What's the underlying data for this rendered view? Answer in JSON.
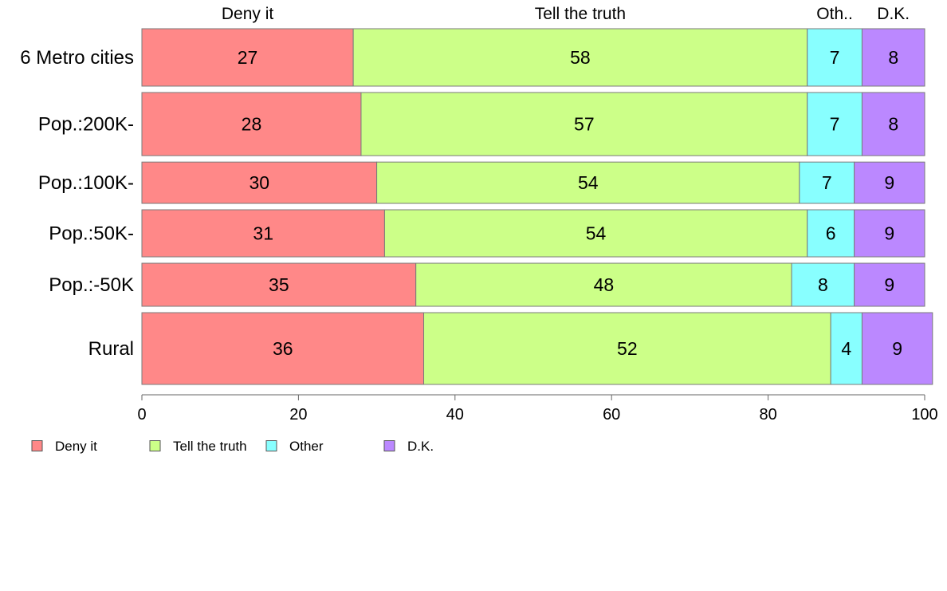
{
  "chart_data": {
    "type": "bar",
    "orientation": "horizontal",
    "stacked": true,
    "categories": [
      "6 Metro cities",
      "Pop.:200K-",
      "Pop.:100K-",
      "Pop.:50K-",
      "Pop.:-50K",
      "Rural"
    ],
    "series": [
      {
        "name": "Deny it",
        "short_label": "Deny it",
        "color": "#ff8888",
        "values": [
          27,
          28,
          30,
          31,
          35,
          36
        ]
      },
      {
        "name": "Tell the truth",
        "short_label": "Tell the truth",
        "color": "#ccff88",
        "values": [
          58,
          57,
          54,
          54,
          48,
          52
        ]
      },
      {
        "name": "Other",
        "short_label": "Oth..",
        "color": "#88ffff",
        "values": [
          7,
          7,
          7,
          6,
          8,
          4
        ]
      },
      {
        "name": "D.K.",
        "short_label": "D.K.",
        "color": "#bb88ff",
        "values": [
          8,
          8,
          9,
          9,
          9,
          9
        ]
      }
    ],
    "xlim": [
      0,
      100
    ],
    "xticks": [
      0,
      20,
      40,
      60,
      80,
      100
    ],
    "grid": false,
    "legend": "bottom-left",
    "column_headers_position": "top",
    "bar_weights": [
      1.0,
      1.1,
      0.72,
      0.82,
      0.75,
      1.25
    ]
  }
}
